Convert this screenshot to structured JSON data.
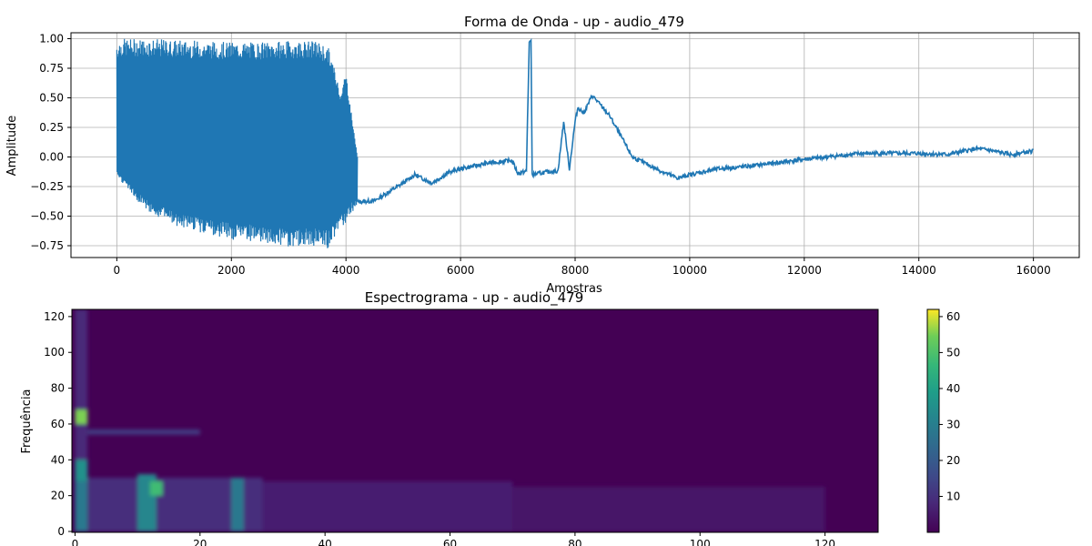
{
  "chart_data": [
    {
      "type": "line",
      "title": "Forma de Onda - up - audio_479",
      "xlabel": "Amostras",
      "ylabel": "Amplitude",
      "xlim": [
        -800,
        16800
      ],
      "ylim": [
        -0.85,
        1.05
      ],
      "grid": true,
      "color": "#1f77b4",
      "x_ticks": [
        0,
        2000,
        4000,
        6000,
        8000,
        10000,
        12000,
        14000,
        16000
      ],
      "x_tick_labels": [
        "0",
        "2000",
        "4000",
        "6000",
        "8000",
        "10000",
        "12000",
        "14000",
        "16000"
      ],
      "y_ticks": [
        -0.75,
        -0.5,
        -0.25,
        0.0,
        0.25,
        0.5,
        0.75,
        1.0
      ],
      "y_tick_labels": [
        "−0.75",
        "−0.50",
        "−0.25",
        "0.00",
        "0.25",
        "0.50",
        "0.75",
        "1.00"
      ],
      "envelope": {
        "x": [
          0,
          100,
          500,
          1000,
          1500,
          2000,
          2500,
          3000,
          3500,
          3700,
          3800,
          3900,
          4000,
          4100,
          4200
        ],
        "upper": [
          0.98,
          1.0,
          1.0,
          0.99,
          0.98,
          0.97,
          0.97,
          0.98,
          0.98,
          0.92,
          0.75,
          0.55,
          0.72,
          0.35,
          0.0
        ],
        "lower": [
          -0.15,
          -0.22,
          -0.45,
          -0.58,
          -0.65,
          -0.7,
          -0.72,
          -0.76,
          -0.75,
          -0.78,
          -0.68,
          -0.62,
          -0.55,
          -0.48,
          -0.4
        ]
      },
      "trend": {
        "x": [
          4200,
          4500,
          5000,
          5200,
          5500,
          5800,
          6000,
          6500,
          6900,
          7000,
          7150,
          7200,
          7230,
          7250,
          7600,
          7700,
          7800,
          7900,
          8000,
          8050,
          8150,
          8300,
          8600,
          9000,
          9500,
          9800,
          10000,
          10500,
          11000,
          12000,
          13000,
          14000,
          14500,
          15000,
          15200,
          15600,
          16000
        ],
        "y": [
          -0.38,
          -0.37,
          -0.22,
          -0.15,
          -0.22,
          -0.13,
          -0.1,
          -0.05,
          -0.03,
          -0.14,
          -0.12,
          0.98,
          0.97,
          -0.15,
          -0.12,
          -0.12,
          0.3,
          -0.1,
          0.3,
          0.42,
          0.37,
          0.52,
          0.35,
          0.0,
          -0.12,
          -0.18,
          -0.15,
          -0.1,
          -0.08,
          -0.02,
          0.03,
          0.03,
          0.02,
          0.07,
          0.06,
          0.02,
          0.05
        ]
      }
    },
    {
      "type": "heatmap",
      "title": "Espectrograma - up - audio_479",
      "xlabel": "",
      "ylabel": "Frequência",
      "xlim": [
        -0.5,
        128.5
      ],
      "ylim": [
        -0.5,
        124
      ],
      "colormap": "viridis",
      "colorbar_range": [
        0,
        62
      ],
      "x_ticks": [
        0,
        20,
        40,
        60,
        80,
        100,
        120
      ],
      "x_tick_labels": [
        "0",
        "20",
        "40",
        "60",
        "80",
        "100",
        "120"
      ],
      "y_ticks": [
        0,
        20,
        40,
        60,
        80,
        100,
        120
      ],
      "y_tick_labels": [
        "0",
        "20",
        "40",
        "60",
        "80",
        "100",
        "120"
      ],
      "colorbar_ticks": [
        10,
        20,
        30,
        40,
        50,
        60
      ],
      "colorbar_tick_labels": [
        "10",
        "20",
        "30",
        "40",
        "50",
        "60"
      ],
      "bands": [
        {
          "x": [
            0,
            2
          ],
          "y": [
            0,
            124
          ],
          "value": 8
        },
        {
          "x": [
            0,
            2
          ],
          "y": [
            60,
            68
          ],
          "value": 55
        },
        {
          "x": [
            0,
            2
          ],
          "y": [
            28,
            40
          ],
          "value": 35
        },
        {
          "x": [
            0,
            2
          ],
          "y": [
            0,
            28
          ],
          "value": 28
        },
        {
          "x": [
            2,
            20
          ],
          "y": [
            54,
            57
          ],
          "value": 12
        },
        {
          "x": [
            2,
            30
          ],
          "y": [
            0,
            30
          ],
          "value": 9
        },
        {
          "x": [
            10,
            13
          ],
          "y": [
            0,
            32
          ],
          "value": 32
        },
        {
          "x": [
            12,
            14
          ],
          "y": [
            20,
            28
          ],
          "value": 48
        },
        {
          "x": [
            25,
            27
          ],
          "y": [
            0,
            30
          ],
          "value": 28
        },
        {
          "x": [
            30,
            70
          ],
          "y": [
            0,
            28
          ],
          "value": 6
        },
        {
          "x": [
            70,
            120
          ],
          "y": [
            0,
            25
          ],
          "value": 4
        }
      ]
    }
  ]
}
